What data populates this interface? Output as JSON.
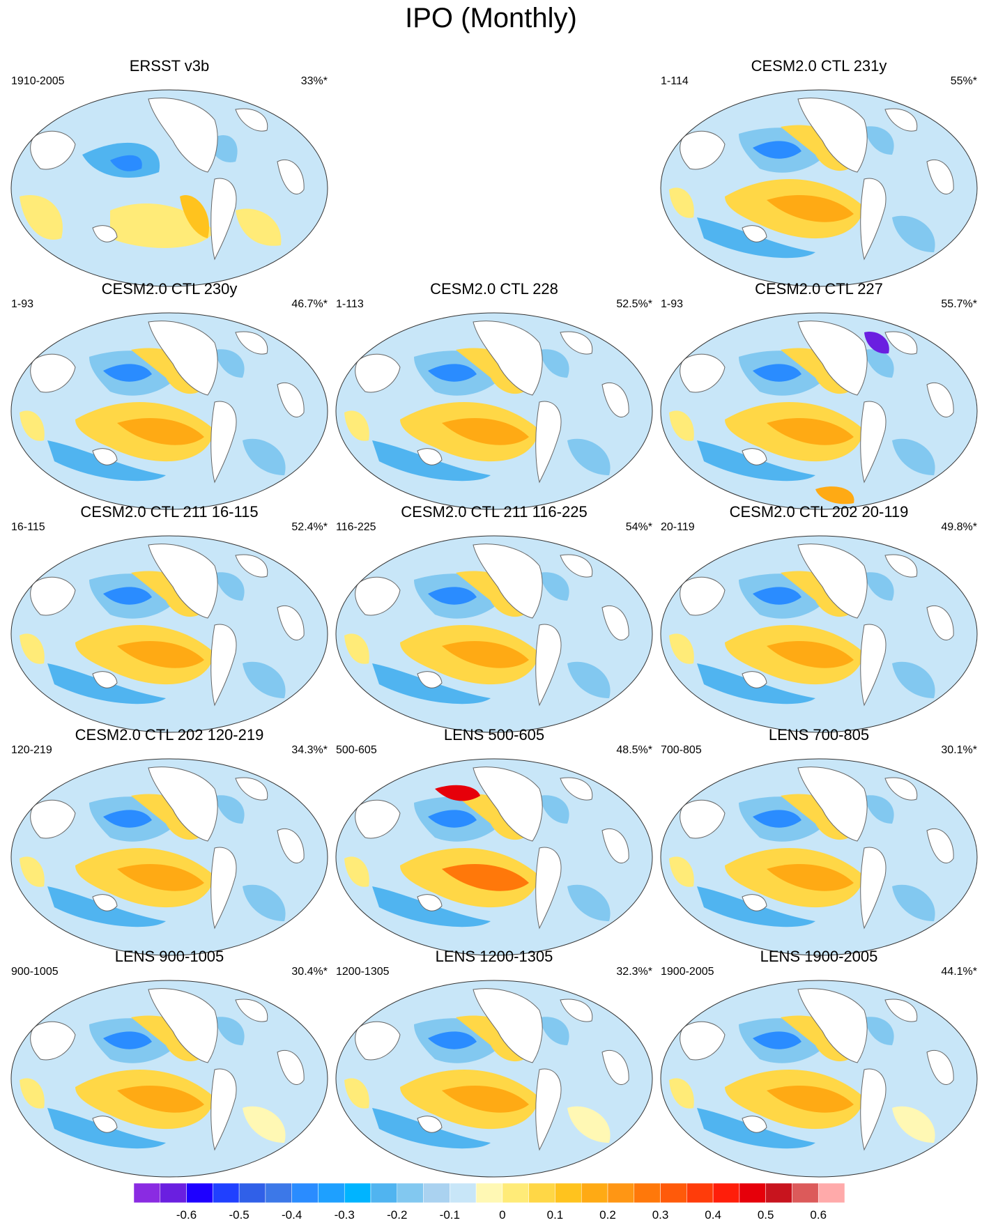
{
  "title": "IPO (Monthly)",
  "panels": [
    {
      "title": "ERSST v3b",
      "range": "1910-2005",
      "pct": "33%*",
      "slot": 0,
      "variant": 0
    },
    {
      "title": "CESM2.0 CTL 231y",
      "range": "1-114",
      "pct": "55%*",
      "slot": 2,
      "variant": 1
    },
    {
      "title": "CESM2.0 CTL 230y",
      "range": "1-93",
      "pct": "46.7%*",
      "slot": 3,
      "variant": 1
    },
    {
      "title": "CESM2.0 CTL 228",
      "range": "1-113",
      "pct": "52.5%*",
      "slot": 4,
      "variant": 2
    },
    {
      "title": "CESM2.0 CTL 227",
      "range": "1-93",
      "pct": "55.7%*",
      "slot": 5,
      "variant": 3
    },
    {
      "title": "CESM2.0 CTL 211 16-115",
      "range": "16-115",
      "pct": "52.4%*",
      "slot": 6,
      "variant": 2
    },
    {
      "title": "CESM2.0 CTL 211 116-225",
      "range": "116-225",
      "pct": "54%*",
      "slot": 7,
      "variant": 2
    },
    {
      "title": "CESM2.0 CTL 202 20-119",
      "range": "20-119",
      "pct": "49.8%*",
      "slot": 8,
      "variant": 1
    },
    {
      "title": "CESM2.0 CTL 202 120-219",
      "range": "120-219",
      "pct": "34.3%*",
      "slot": 9,
      "variant": 1
    },
    {
      "title": "LENS 500-605",
      "range": "500-605",
      "pct": "48.5%*",
      "slot": 10,
      "variant": 4
    },
    {
      "title": "LENS 700-805",
      "range": "700-805",
      "pct": "30.1%*",
      "slot": 11,
      "variant": 1
    },
    {
      "title": "LENS 900-1005",
      "range": "900-1005",
      "pct": "30.4%*",
      "slot": 12,
      "variant": 5
    },
    {
      "title": "LENS 1200-1305",
      "range": "1200-1305",
      "pct": "32.3%*",
      "slot": 13,
      "variant": 5
    },
    {
      "title": "LENS 1900-2005",
      "range": "1900-2005",
      "pct": "44.1%*",
      "slot": 14,
      "variant": 5
    }
  ],
  "colorbar": {
    "colors": [
      "#8a2be2",
      "#6a1fe0",
      "#1e00ff",
      "#2040ff",
      "#3060e8",
      "#3c78e8",
      "#2a8cff",
      "#1ea0ff",
      "#00b4ff",
      "#50b4f0",
      "#82c8f0",
      "#aad2f0",
      "#c8e6f8",
      "#fff8b4",
      "#ffeb78",
      "#ffd746",
      "#ffc31e",
      "#ffaa14",
      "#ff9614",
      "#ff780a",
      "#ff5a0a",
      "#ff3c0a",
      "#ff1e0a",
      "#e6000a",
      "#c8141e",
      "#dc5a5a",
      "#ffaaaa"
    ],
    "labels": [
      "-0.6",
      "-0.5",
      "-0.4",
      "-0.3",
      "-0.2",
      "-0.1",
      "0",
      "0.1",
      "0.2",
      "0.3",
      "0.4",
      "0.5",
      "0.6"
    ]
  }
}
